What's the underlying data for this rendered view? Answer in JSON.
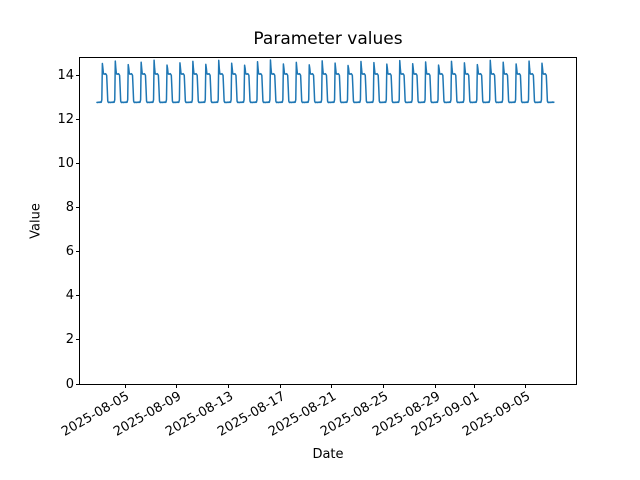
{
  "chart_data": {
    "type": "line",
    "title": "Parameter values",
    "xlabel": "Date",
    "ylabel": "Value",
    "line_color": "#1f77b4",
    "axes_color": "#000000",
    "background_color": "#ffffff",
    "y_ticks": [
      "0",
      "2",
      "4",
      "6",
      "8",
      "10",
      "12",
      "14"
    ],
    "ylim": [
      0,
      14.79
    ],
    "x_tick_labels": [
      "2025-08-05",
      "2025-08-09",
      "2025-08-13",
      "2025-08-17",
      "2025-08-21",
      "2025-08-25",
      "2025-08-29",
      "2025-09-01",
      "2025-09-05"
    ],
    "x_tick_day_offsets": [
      0,
      4,
      8,
      12,
      16,
      20,
      24,
      27,
      31
    ],
    "series": {
      "name": "Parameter values",
      "start": "2025-08-02 20:00",
      "end": "2025-09-07 04:00",
      "sample_interval_hours": 1,
      "description": "Daily repeating step pattern: low ~12.76 overnight, sharp spike to ~14.5-14.7 at 06:00, plateau ~14.05 through midday, step down via ~13.4 to low ~12.76",
      "daily_profile": [
        12.77,
        12.76,
        12.78,
        12.76,
        12.77,
        12.88,
        14.55,
        14.3,
        14.06,
        14.04,
        14.05,
        14.04,
        14.06,
        14.03,
        13.98,
        13.42,
        12.82,
        12.76,
        12.75,
        12.77,
        12.76,
        12.75,
        12.77,
        12.76
      ],
      "peak_hour": 6,
      "daily_peak_values": [
        14.52,
        14.63,
        14.47,
        14.58,
        14.67,
        14.45,
        14.55,
        14.62,
        14.48,
        14.66,
        14.53,
        14.44,
        14.6,
        14.68,
        14.5,
        14.57,
        14.46,
        14.64,
        14.54,
        14.43,
        14.61,
        14.56,
        14.49,
        14.65,
        14.51,
        14.59,
        14.45,
        14.62,
        14.55,
        14.47,
        14.66,
        14.58,
        14.5,
        14.63,
        14.53
      ]
    }
  }
}
